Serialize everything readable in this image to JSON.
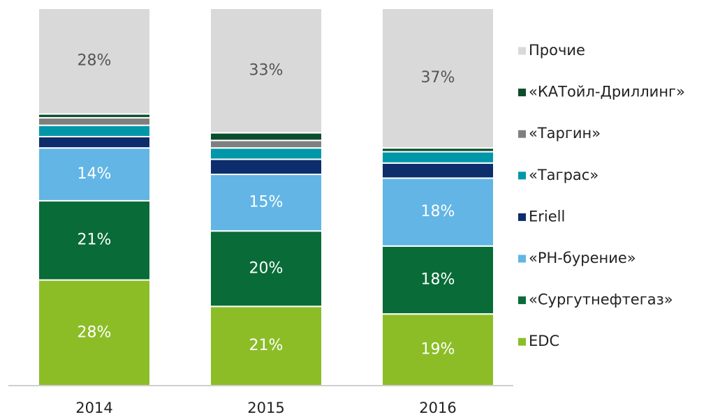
{
  "chart_data": {
    "type": "stacked_bar",
    "categories": [
      "2014",
      "2015",
      "2016"
    ],
    "ylim": [
      0,
      100
    ],
    "series": [
      {
        "name": "EDC",
        "color": "#8cbd27",
        "values": [
          28,
          21,
          19
        ],
        "value_labels": [
          "28%",
          "21%",
          "19%"
        ]
      },
      {
        "name": "«Сургутнефтегаз»",
        "color": "#086b38",
        "values": [
          21,
          20,
          18
        ],
        "value_labels": [
          "21%",
          "20%",
          "18%"
        ]
      },
      {
        "name": "«РН-бурение»",
        "color": "#62b5e5",
        "values": [
          14,
          15,
          18
        ],
        "value_labels": [
          "14%",
          "15%",
          "18%"
        ]
      },
      {
        "name": "Eriell",
        "color": "#0d2d6c",
        "values": [
          3,
          4,
          4
        ],
        "value_labels": [
          null,
          null,
          null
        ]
      },
      {
        "name": "«Таграс»",
        "color": "#0097a9",
        "values": [
          3,
          3,
          3
        ],
        "value_labels": [
          null,
          null,
          null
        ]
      },
      {
        "name": "«Таргин»",
        "color": "#7f7f7f",
        "values": [
          2,
          2,
          0
        ],
        "value_labels": [
          null,
          null,
          null
        ]
      },
      {
        "name": "«КАТойл-Дриллинг»",
        "color": "#0b4d2c",
        "values": [
          1,
          2,
          1
        ],
        "value_labels": [
          null,
          null,
          null
        ]
      },
      {
        "name": "Прочие",
        "color": "#d9d9d9",
        "values": [
          28,
          33,
          37
        ],
        "value_labels": [
          "28%",
          "33%",
          "37%"
        ]
      }
    ],
    "legend": "right"
  }
}
